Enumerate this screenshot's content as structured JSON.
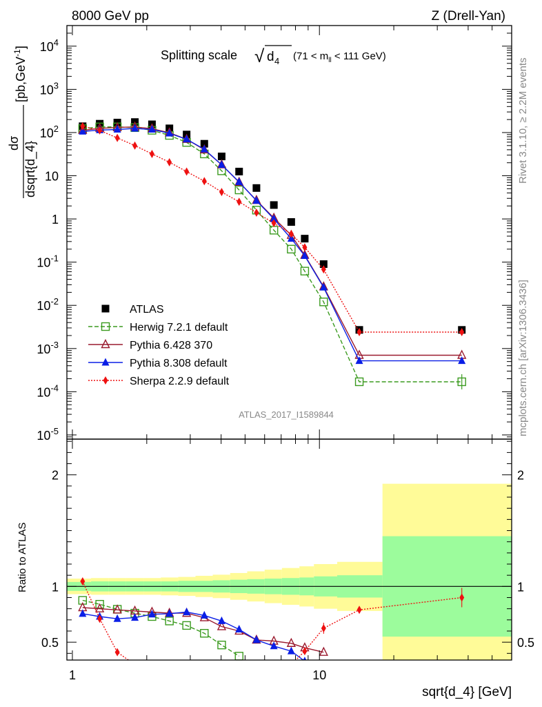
{
  "header": {
    "left": "8000 GeV pp",
    "right": "Z (Drell-Yan)"
  },
  "side_labels": {
    "rivet": "Rivet 3.1.10, ≥ 2.2M events",
    "mcplots": "mcplots.cern.ch [arXiv:1306.3436]"
  },
  "watermark": "ATLAS_2017_I1589844",
  "chart_data": [
    {
      "type": "line",
      "title": {
        "main": "Splitting scale",
        "sqrt_symbol": "√",
        "var": "d",
        "var_sub": "4",
        "cut_open": "(71 < m",
        "cut_sub": "ll",
        "cut_close": " < 111 GeV)"
      },
      "ylabel": {
        "num": "dσ",
        "den": "dsqrt{d_4}",
        "units": "[pb,GeV",
        "units_sup": "-1",
        "units_close": "]"
      },
      "xscale": "log",
      "yscale": "log",
      "xlim": [
        0.95,
        60
      ],
      "ylim": [
        8e-06,
        30000
      ],
      "y_ticks": [
        {
          "v": 1e-05,
          "base": "10",
          "exp": "-5"
        },
        {
          "v": 0.0001,
          "base": "10",
          "exp": "-4"
        },
        {
          "v": 0.001,
          "base": "10",
          "exp": "-3"
        },
        {
          "v": 0.01,
          "base": "10",
          "exp": "-2"
        },
        {
          "v": 0.1,
          "base": "10",
          "exp": "-1"
        },
        {
          "v": 1,
          "base": "1",
          "exp": ""
        },
        {
          "v": 10,
          "base": "10",
          "exp": ""
        },
        {
          "v": 100,
          "base": "10",
          "exp": "2"
        },
        {
          "v": 1000,
          "base": "10",
          "exp": "3"
        },
        {
          "v": 10000,
          "base": "10",
          "exp": "4"
        }
      ],
      "legend_position": "center-left",
      "series": [
        {
          "name": "ATLAS",
          "color": "#000000",
          "marker": "square-filled",
          "line": "none",
          "x": [
            1.1,
            1.29,
            1.52,
            1.79,
            2.1,
            2.47,
            2.9,
            3.42,
            4.02,
            4.73,
            5.56,
            6.54,
            7.69,
            8.72,
            10.4,
            14.5,
            37.7
          ],
          "y": [
            140,
            160,
            170,
            175,
            155,
            125,
            90,
            55,
            28,
            12.5,
            5.2,
            2.1,
            0.85,
            0.35,
            0.09,
            0.0027,
            0.0027
          ]
        },
        {
          "name": "Herwig 7.2.1 default",
          "color": "#3a9a1e",
          "marker": "square-open",
          "line": "dashed",
          "x": [
            1.1,
            1.29,
            1.52,
            1.79,
            2.1,
            2.47,
            2.9,
            3.42,
            4.02,
            4.73,
            5.56,
            6.54,
            7.69,
            8.72,
            10.4,
            14.5,
            37.7
          ],
          "y": [
            123,
            135,
            135,
            130,
            113,
            86,
            59,
            32,
            13,
            4.7,
            1.6,
            0.55,
            0.2,
            0.062,
            0.012,
            0.00017,
            0.00017
          ]
        },
        {
          "name": "Pythia 6.428 370",
          "color": "#9a1a2e",
          "marker": "triangle-open",
          "line": "solid",
          "x": [
            1.1,
            1.29,
            1.52,
            1.79,
            2.1,
            2.47,
            2.9,
            3.42,
            4.02,
            4.73,
            5.56,
            6.54,
            7.69,
            8.72,
            10.4,
            14.5,
            37.7
          ],
          "y": [
            113,
            125,
            131,
            135,
            123,
            99,
            70,
            40,
            18,
            7.1,
            2.7,
            1.05,
            0.42,
            0.145,
            0.027,
            0.0007,
            0.0007
          ]
        },
        {
          "name": "Pythia 8.308 default",
          "color": "#0a1ee6",
          "marker": "triangle-filled",
          "line": "solid",
          "x": [
            1.1,
            1.29,
            1.52,
            1.79,
            2.1,
            2.47,
            2.9,
            3.42,
            4.02,
            4.73,
            5.56,
            6.54,
            7.69,
            8.72,
            10.4,
            14.5,
            37.7
          ],
          "y": [
            106,
            114,
            118,
            124,
            118,
            96,
            70,
            41,
            18,
            7.2,
            2.65,
            1.0,
            0.35,
            0.14,
            0.026,
            0.00052,
            0.00052
          ]
        },
        {
          "name": "Sherpa 2.2.9 default",
          "color": "#ee1111",
          "marker": "diamond-filled",
          "line": "dotted",
          "x": [
            1.1,
            1.29,
            1.52,
            1.79,
            2.1,
            2.47,
            2.9,
            3.42,
            4.02,
            4.73,
            5.56,
            6.54,
            7.69,
            8.72,
            10.4,
            14.5,
            37.7
          ],
          "y": [
            140,
            112,
            75,
            50,
            32,
            20.5,
            12.5,
            7.5,
            4.2,
            2.5,
            1.4,
            0.8,
            0.45,
            0.22,
            0.068,
            0.0024,
            0.0024
          ]
        }
      ]
    },
    {
      "type": "line",
      "ylabel": "Ratio to ATLAS",
      "xlabel": "sqrt{d_4} [GeV]",
      "xscale": "log",
      "xlim": [
        0.95,
        60
      ],
      "ylim": [
        0.34,
        2.32
      ],
      "x_ticks": [
        {
          "v": 1,
          "label": "1"
        },
        {
          "v": 10,
          "label": "10"
        }
      ],
      "y_ticks": [
        {
          "v": 0.5,
          "label": "0.5"
        },
        {
          "v": 1,
          "label": "1"
        },
        {
          "v": 2,
          "label": "2"
        }
      ],
      "bands": [
        {
          "x0": 0.95,
          "x1": 1.19,
          "inner": [
            0.96,
            1.04
          ],
          "outer": [
            0.93,
            1.07
          ]
        },
        {
          "x0": 1.19,
          "x1": 1.4,
          "inner": [
            0.955,
            1.045
          ],
          "outer": [
            0.925,
            1.075
          ]
        },
        {
          "x0": 1.4,
          "x1": 1.65,
          "inner": [
            0.955,
            1.045
          ],
          "outer": [
            0.925,
            1.075
          ]
        },
        {
          "x0": 1.65,
          "x1": 1.94,
          "inner": [
            0.955,
            1.045
          ],
          "outer": [
            0.925,
            1.075
          ]
        },
        {
          "x0": 1.94,
          "x1": 2.28,
          "inner": [
            0.955,
            1.045
          ],
          "outer": [
            0.925,
            1.075
          ]
        },
        {
          "x0": 2.28,
          "x1": 2.68,
          "inner": [
            0.955,
            1.045
          ],
          "outer": [
            0.92,
            1.08
          ]
        },
        {
          "x0": 2.68,
          "x1": 3.15,
          "inner": [
            0.95,
            1.05
          ],
          "outer": [
            0.915,
            1.085
          ]
        },
        {
          "x0": 3.15,
          "x1": 3.7,
          "inner": [
            0.95,
            1.05
          ],
          "outer": [
            0.905,
            1.095
          ]
        },
        {
          "x0": 3.7,
          "x1": 4.35,
          "inner": [
            0.945,
            1.055
          ],
          "outer": [
            0.895,
            1.105
          ]
        },
        {
          "x0": 4.35,
          "x1": 5.1,
          "inner": [
            0.94,
            1.06
          ],
          "outer": [
            0.88,
            1.12
          ]
        },
        {
          "x0": 5.1,
          "x1": 6.0,
          "inner": [
            0.935,
            1.065
          ],
          "outer": [
            0.865,
            1.135
          ]
        },
        {
          "x0": 6.0,
          "x1": 7.05,
          "inner": [
            0.93,
            1.07
          ],
          "outer": [
            0.85,
            1.15
          ]
        },
        {
          "x0": 7.05,
          "x1": 8.3,
          "inner": [
            0.925,
            1.075
          ],
          "outer": [
            0.835,
            1.165
          ]
        },
        {
          "x0": 8.3,
          "x1": 9.5,
          "inner": [
            0.92,
            1.08
          ],
          "outer": [
            0.82,
            1.18
          ]
        },
        {
          "x0": 9.5,
          "x1": 11.8,
          "inner": [
            0.91,
            1.09
          ],
          "outer": [
            0.8,
            1.2
          ]
        },
        {
          "x0": 11.8,
          "x1": 18.0,
          "inner": [
            0.9,
            1.1
          ],
          "outer": [
            0.78,
            1.22
          ]
        },
        {
          "x0": 18.0,
          "x1": 60,
          "inner": [
            0.55,
            1.45
          ],
          "outer": [
            0.34,
            1.92
          ]
        }
      ],
      "series": [
        {
          "name": "Herwig 7.2.1 default",
          "color": "#3a9a1e",
          "marker": "square-open",
          "line": "dashed",
          "x": [
            1.1,
            1.29,
            1.52,
            1.79,
            2.1,
            2.47,
            2.9,
            3.42,
            4.02,
            4.73
          ],
          "y": [
            0.875,
            0.84,
            0.795,
            0.76,
            0.73,
            0.69,
            0.65,
            0.58,
            0.475,
            0.375
          ]
        },
        {
          "name": "Pythia 6.428 370",
          "color": "#9a1a2e",
          "marker": "triangle-open",
          "line": "solid",
          "x": [
            1.1,
            1.29,
            1.52,
            1.79,
            2.1,
            2.47,
            2.9,
            3.42,
            4.02,
            4.73,
            5.56,
            6.54,
            7.69,
            8.72,
            10.4
          ],
          "y": [
            0.81,
            0.8,
            0.79,
            0.78,
            0.77,
            0.76,
            0.76,
            0.72,
            0.64,
            0.6,
            0.52,
            0.51,
            0.49,
            0.45,
            0.41
          ]
        },
        {
          "name": "Pythia 8.308 default",
          "color": "#0a1ee6",
          "marker": "triangle-filled",
          "line": "solid",
          "x": [
            1.1,
            1.29,
            1.52,
            1.79,
            2.1,
            2.47,
            2.9,
            3.42,
            4.02,
            4.73,
            5.56,
            6.54,
            7.69,
            8.72
          ],
          "y": [
            0.755,
            0.73,
            0.71,
            0.72,
            0.75,
            0.755,
            0.77,
            0.74,
            0.69,
            0.615,
            0.52,
            0.465,
            0.42,
            0.33
          ]
        },
        {
          "name": "Sherpa 2.2.9 default",
          "color": "#ee1111",
          "marker": "diamond-filled",
          "line": "dotted",
          "x": [
            1.1,
            1.29,
            1.52,
            1.79,
            7.69,
            8.72,
            10.4,
            14.5,
            37.7
          ],
          "y": [
            1.045,
            0.71,
            0.41,
            0.3,
            0.3,
            0.42,
            0.625,
            0.79,
            0.9
          ]
        }
      ]
    }
  ]
}
